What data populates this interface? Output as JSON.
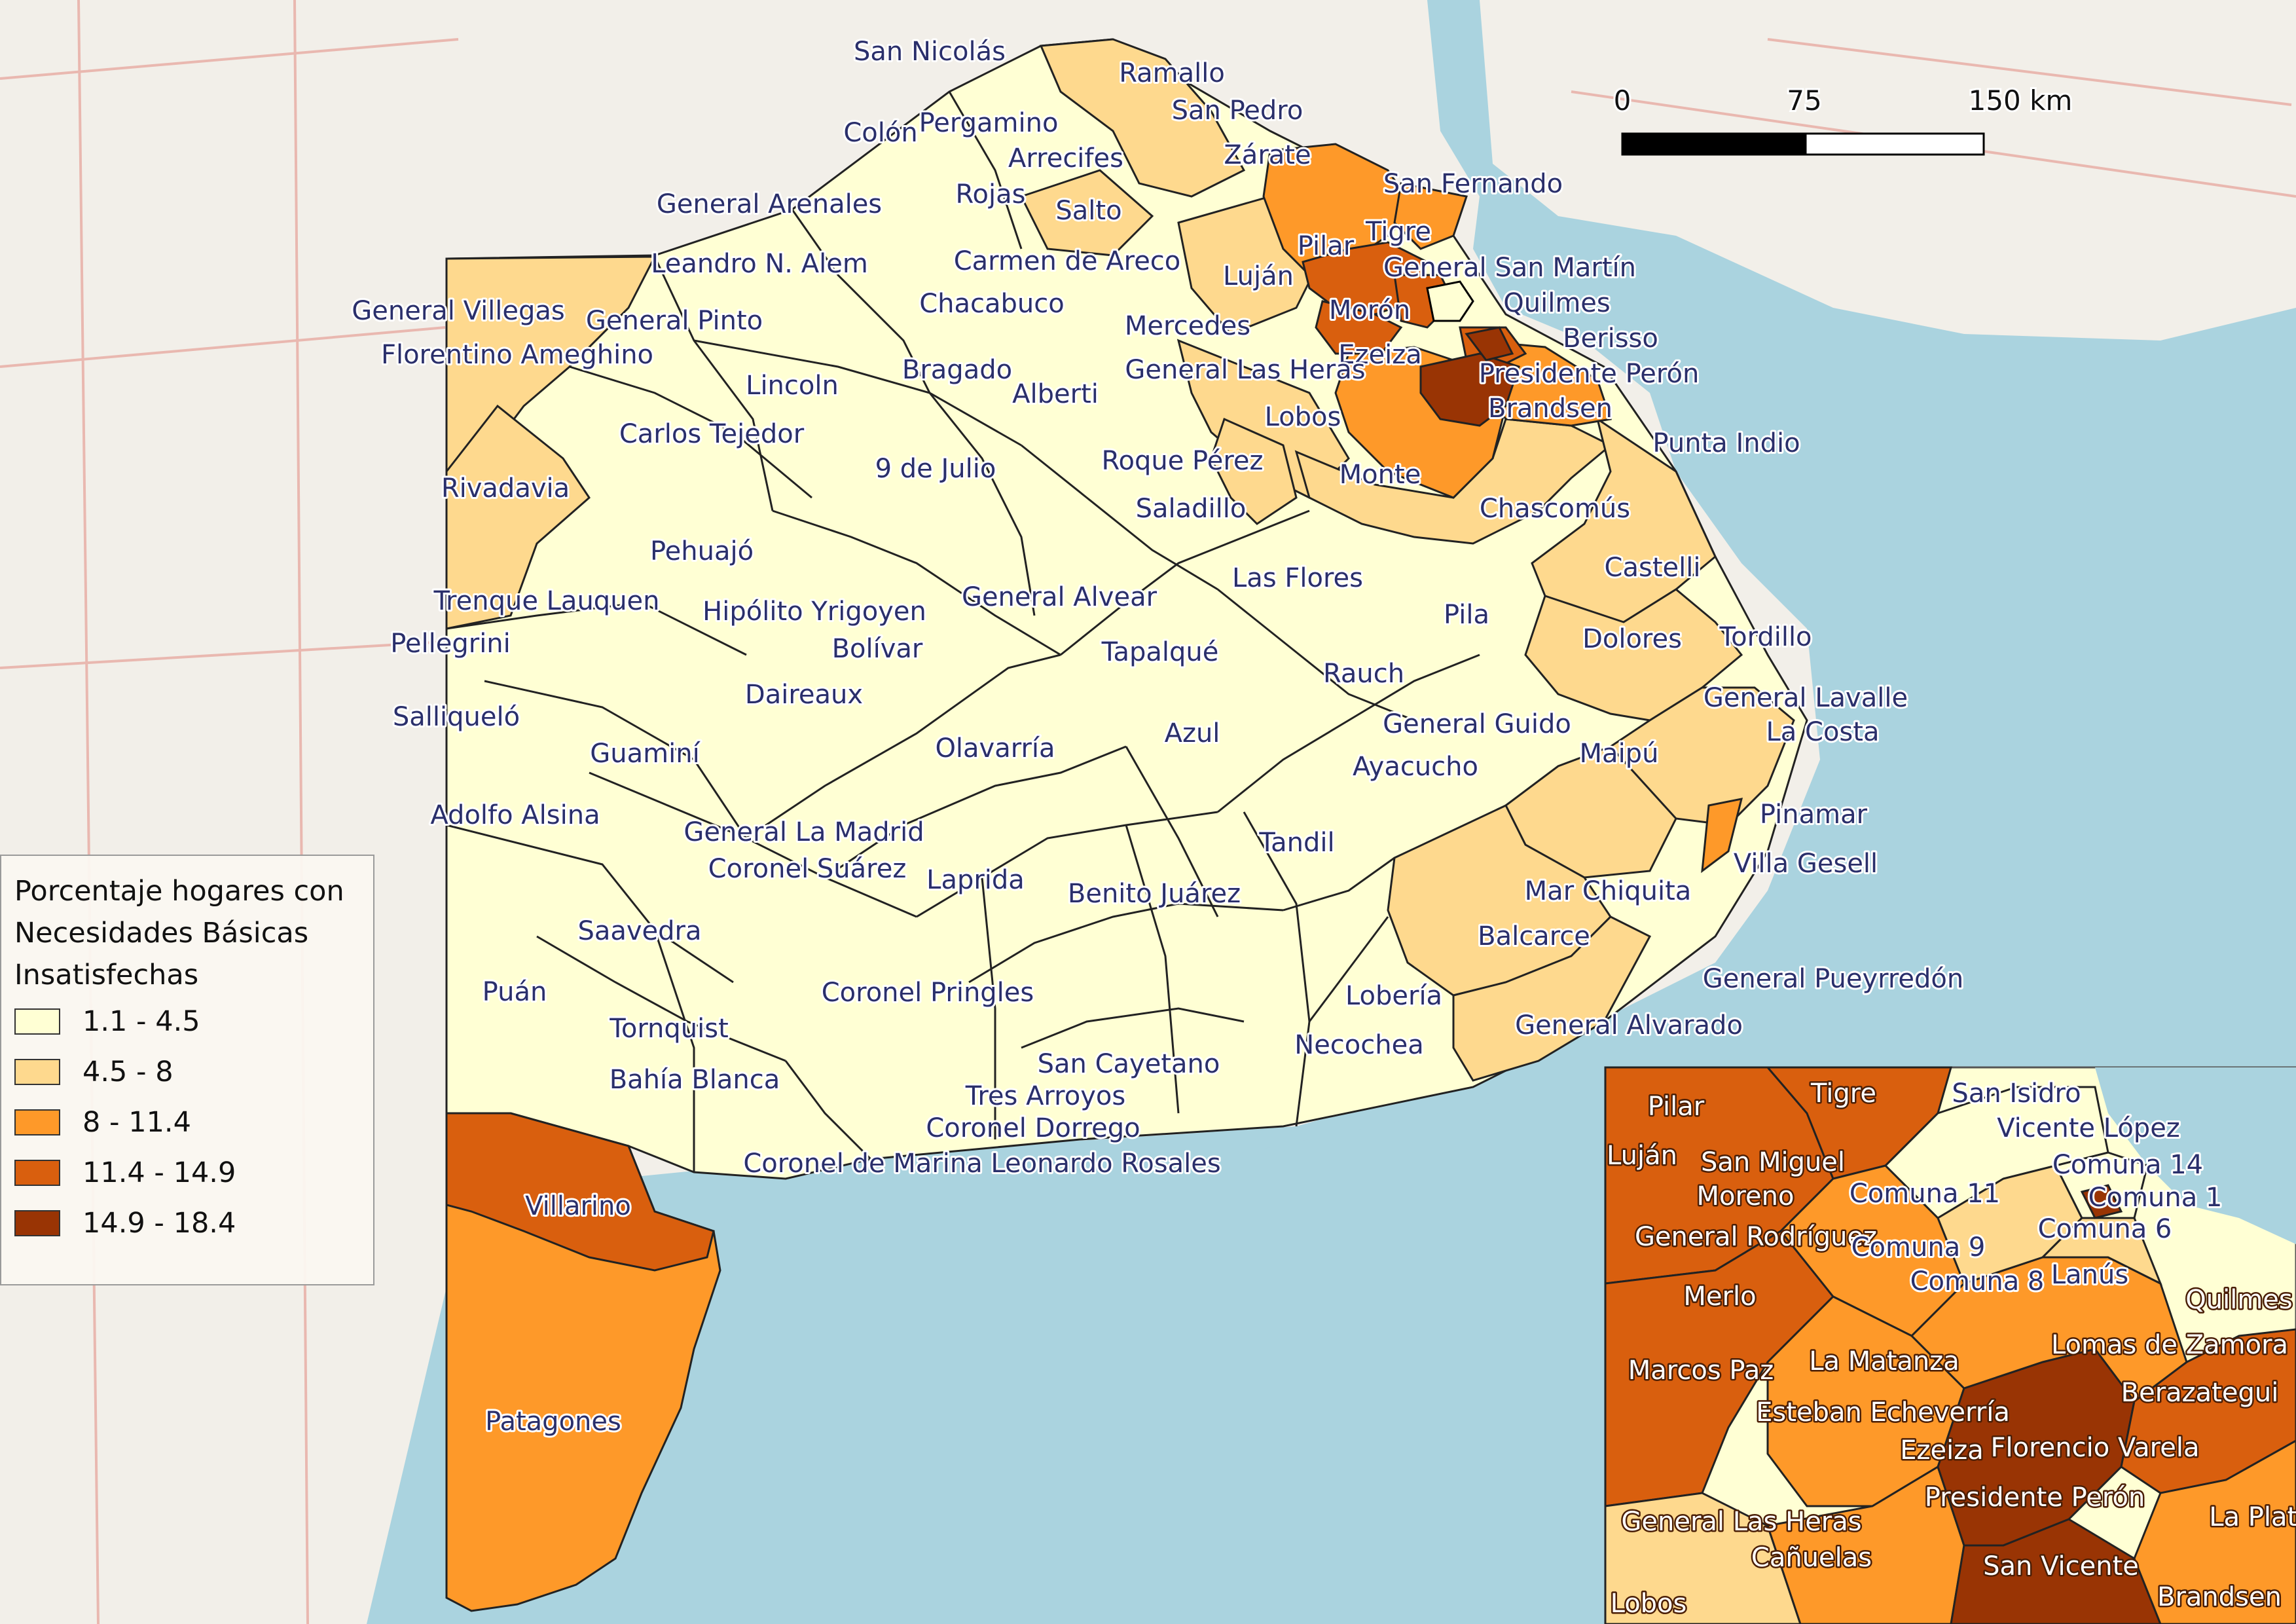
{
  "map": {
    "scale_bar": {
      "ticks": [
        "0",
        "75",
        "150 km"
      ]
    },
    "classes": [
      {
        "range": "1.1 - 4.5",
        "color": "#ffffd4"
      },
      {
        "range": "4.5 - 8",
        "color": "#fed98e"
      },
      {
        "range": "8 - 11.4",
        "color": "#fe9929"
      },
      {
        "range": "11.4 - 14.9",
        "color": "#d95f0e"
      },
      {
        "range": "14.9 - 18.4",
        "color": "#993404"
      }
    ],
    "water_color": "#aad3df",
    "land_color": "#f2efe9"
  },
  "legend": {
    "title_lines": [
      "Porcentaje hogares con",
      "Necesidades Básicas",
      " Insatisfechas"
    ]
  },
  "partidos": [
    "San Nicolás",
    "Ramallo",
    "San Pedro",
    "Colón",
    "Pergamino",
    "Arrecifes",
    "Zárate",
    "San Fernando",
    "General Arenales",
    "Rojas",
    "Salto",
    "Tigre",
    "Pilar",
    "Carmen de Areco",
    "Luján",
    "General San Martín",
    "Leandro N. Alem",
    "Morón",
    "Quilmes",
    "General Villegas",
    "General Pinto",
    "Chacabuco",
    "Mercedes",
    "Ezeiza",
    "Berisso",
    "Florentino Ameghino",
    "Bragado",
    "General Las Heras",
    "Presidente Perón",
    "Lincoln",
    "Alberti",
    "Brandsen",
    "Lobos",
    "Carlos Tejedor",
    "Punta Indio",
    "Roque Pérez",
    "9 de Julio",
    "Monte",
    "Rivadavia",
    "Saladillo",
    "Chascomús",
    "Pehuajó",
    "Castelli",
    "Las Flores",
    "Trenque Lauquen",
    "General Alvear",
    "Hipólito Yrigoyen",
    "Pila",
    "Bolívar",
    "Dolores",
    "Tordillo",
    "Pellegrini",
    "Tapalqué",
    "Rauch",
    "Daireaux",
    "General Lavalle",
    "Salliqueló",
    "General Guido",
    "Azul",
    "La Costa",
    "Guaminí",
    "Olavarría",
    "Maipú",
    "Ayacucho",
    "Adolfo Alsina",
    "Pinamar",
    "General La Madrid",
    "Tandil",
    "Coronel Suárez",
    "Villa Gesell",
    "Laprida",
    "Mar Chiquita",
    "Benito Juárez",
    "Saavedra",
    "Balcarce",
    "General Pueyrredón",
    "Puán",
    "Lobería",
    "Coronel Pringles",
    "Tornquist",
    "General Alvarado",
    "Necochea",
    "San Cayetano",
    "Bahía Blanca",
    "Tres Arroyos",
    "Coronel Dorrego",
    "Coronel de Marina Leonardo Rosales",
    "Villarino",
    "Patagones"
  ],
  "inset_labels": [
    "Pilar",
    "Tigre",
    "San Isidro",
    "Vicente López",
    "Luján",
    "San Miguel",
    "Comuna 14",
    "Moreno",
    "Comuna 11",
    "Comuna 1",
    "General Rodríguez",
    "Comuna 6",
    "Comuna 9",
    "Comuna 8",
    "Lanús",
    "Merlo",
    "Quilmes",
    "Lomas de Zamora",
    "Marcos Paz",
    "La Matanza",
    "Berazategui",
    "Esteban Echeverría",
    "Ezeiza",
    "Florencio Varela",
    "Presidente Perón",
    "General Las Heras",
    "La Plata",
    "Cañuelas",
    "San Vicente",
    "Lobos",
    "Brandsen"
  ]
}
